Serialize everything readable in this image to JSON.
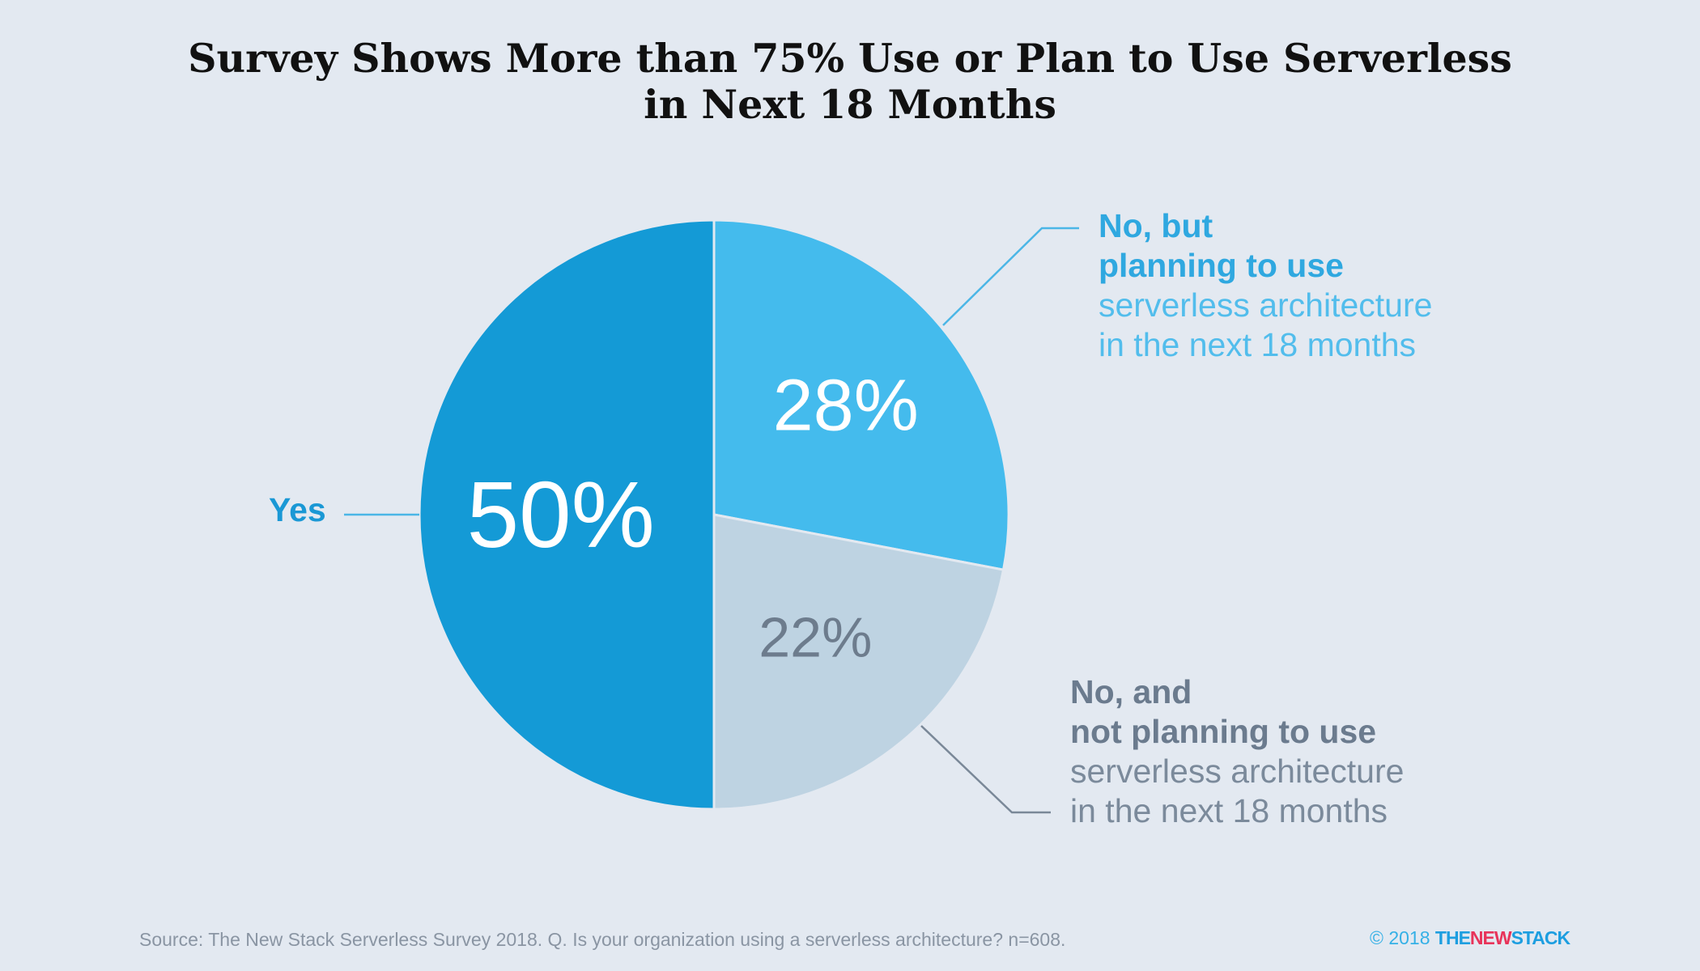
{
  "chart_data": {
    "type": "pie",
    "title": "Survey Shows More than 75% Use or Plan to Use Serverless in Next 18 Months",
    "title_lines": [
      "Survey Shows More than 75% Use or Plan to Use Serverless",
      "in Next 18 Months"
    ],
    "start": "12 o'clock, clockwise",
    "slices": [
      {
        "id": "no-but-planning",
        "value": 28,
        "label": "28%",
        "color": "#44bbed",
        "label_color": "#ffffff",
        "legend_bold": [
          "No, but",
          "planning to use"
        ],
        "legend_light": [
          "serverless architecture",
          "in the next 18 months"
        ]
      },
      {
        "id": "no-not-planning",
        "value": 22,
        "label": "22%",
        "color": "#bed3e2",
        "label_color": "#6d7c8d",
        "legend_bold": [
          "No, and",
          "not planning to use"
        ],
        "legend_light": [
          "serverless architecture",
          "in the next 18 months"
        ]
      },
      {
        "id": "yes",
        "value": 50,
        "label": "50%",
        "color": "#149ad6",
        "label_color": "#ffffff",
        "legend_bold": [
          "Yes"
        ],
        "legend_light": []
      }
    ],
    "source": "Source: The New Stack Serverless Survey 2018. Q. Is your organization using a serverless architecture? n=608."
  },
  "footer": {
    "copyright": "© 2018",
    "brand_start": "THE",
    "brand_mid": "NEW",
    "brand_end": "STACK"
  },
  "colors": {
    "background": "#e3e9f1",
    "leader_blue": "#4bb6e6",
    "leader_gray": "#7a8898"
  }
}
